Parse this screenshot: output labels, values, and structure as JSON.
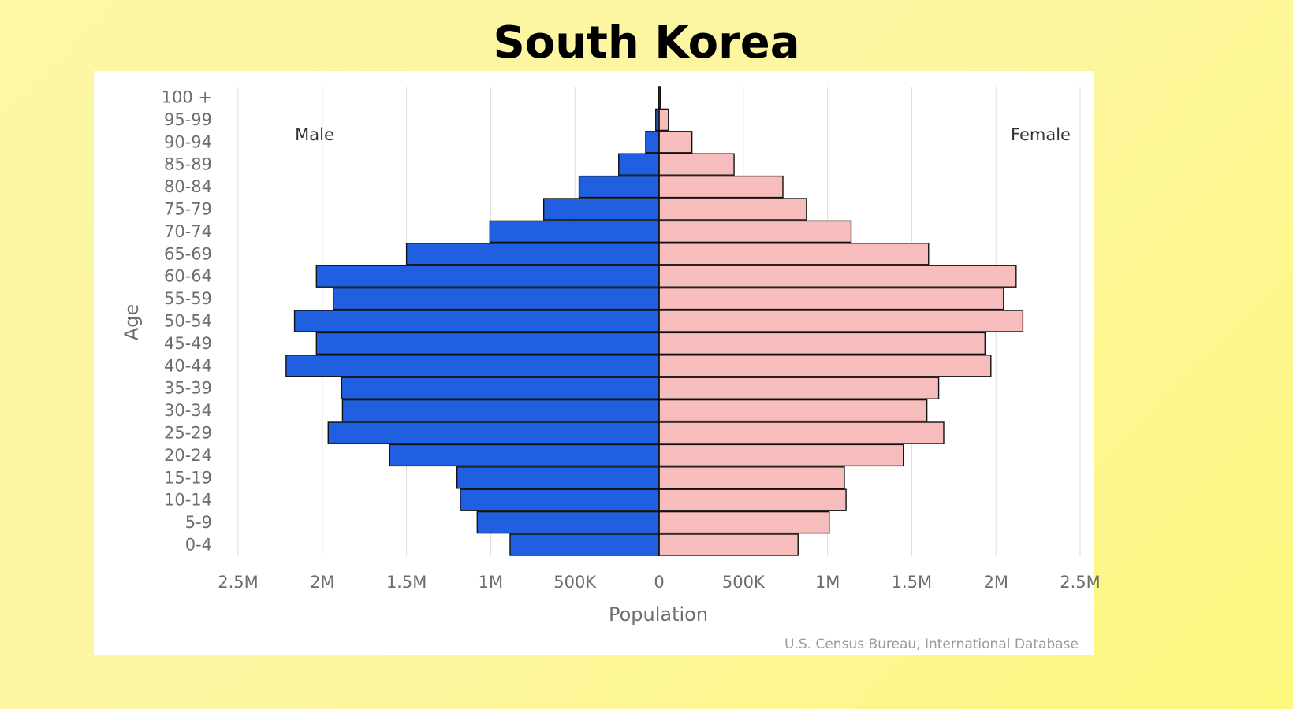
{
  "page": {
    "title": "South Korea",
    "background": "#fcf7a0"
  },
  "chart_data": {
    "type": "bar",
    "orientation": "horizontal",
    "title": "",
    "categories": [
      "0-4",
      "5-9",
      "10-14",
      "15-19",
      "20-24",
      "25-29",
      "30-34",
      "35-39",
      "40-44",
      "45-49",
      "50-54",
      "55-59",
      "60-64",
      "65-69",
      "70-74",
      "75-79",
      "80-84",
      "85-89",
      "90-94",
      "95-99",
      "100 +"
    ],
    "series": [
      {
        "name": "Male",
        "color": "#1f5fe0",
        "values": [
          885000,
          1080000,
          1180000,
          1200000,
          1600000,
          1965000,
          1880000,
          1885000,
          2215000,
          2035000,
          2165000,
          1935000,
          2035000,
          1500000,
          1005000,
          685000,
          475000,
          240000,
          80000,
          20000,
          5000
        ]
      },
      {
        "name": "Female",
        "color": "#f7bcbc",
        "values": [
          825000,
          1010000,
          1110000,
          1100000,
          1450000,
          1690000,
          1590000,
          1660000,
          1970000,
          1935000,
          2160000,
          2045000,
          2120000,
          1600000,
          1140000,
          875000,
          735000,
          445000,
          195000,
          55000,
          8000
        ]
      }
    ],
    "xlabel": "Population",
    "ylabel": "Age",
    "xlim": [
      -2500000,
      2500000
    ],
    "x_ticks": [
      {
        "value": -2500000,
        "label": "2.5M"
      },
      {
        "value": -2000000,
        "label": "2M"
      },
      {
        "value": -1500000,
        "label": "1.5M"
      },
      {
        "value": -1000000,
        "label": "1M"
      },
      {
        "value": -500000,
        "label": "500K"
      },
      {
        "value": 0,
        "label": "0"
      },
      {
        "value": 500000,
        "label": "500K"
      },
      {
        "value": 1000000,
        "label": "1M"
      },
      {
        "value": 1500000,
        "label": "1.5M"
      },
      {
        "value": 2000000,
        "label": "2M"
      },
      {
        "value": 2500000,
        "label": "2.5M"
      }
    ],
    "grid": "vertical",
    "legend": {
      "left": "Male",
      "right": "Female"
    },
    "source": "U.S. Census Bureau, International Database"
  }
}
